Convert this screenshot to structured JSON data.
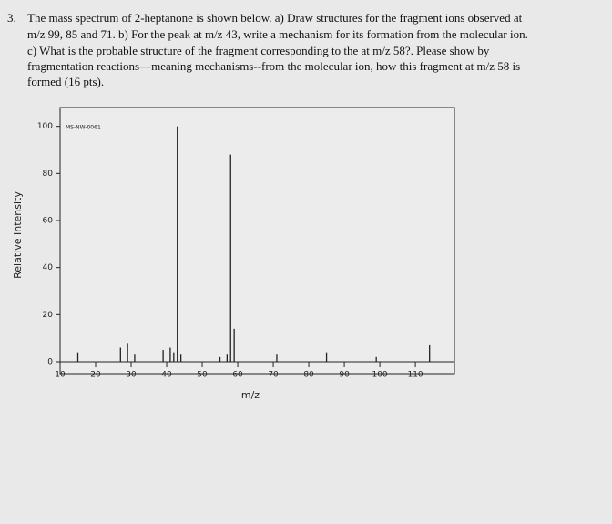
{
  "question": {
    "number": "3.",
    "lines": [
      "The mass spectrum of 2-heptanone is shown below.  a) Draw structures for the fragment ions observed at",
      "m/z 99, 85 and 71.  b) For the peak at m/z 43, write a mechanism for its formation from the molecular ion.",
      "c) What is the probable structure of the fragment corresponding to the at m/z 58?.  Please show by",
      "fragmentation reactions—meaning mechanisms--from the molecular ion, how this fragment at m/z 58 is",
      "formed (16 pts)."
    ]
  },
  "chart_data": {
    "type": "stem",
    "annotation": "MS-NW-0061",
    "x_label": "m/z",
    "y_label": "Relative Intensity",
    "x": [
      15,
      27,
      29,
      31,
      39,
      41,
      42,
      43,
      44,
      55,
      57,
      58,
      59,
      71,
      85,
      99,
      114
    ],
    "values": [
      4,
      6,
      8,
      3,
      5,
      6,
      4,
      100,
      3,
      2,
      3,
      88,
      14,
      3,
      4,
      2,
      7
    ],
    "color": "#222222",
    "xlim": [
      10,
      121
    ],
    "xticks": [
      10,
      20,
      30,
      40,
      50,
      60,
      70,
      80,
      90,
      100,
      110
    ],
    "ylim": [
      0,
      108
    ],
    "yticks": [
      0,
      20,
      40,
      60,
      80,
      100
    ]
  }
}
